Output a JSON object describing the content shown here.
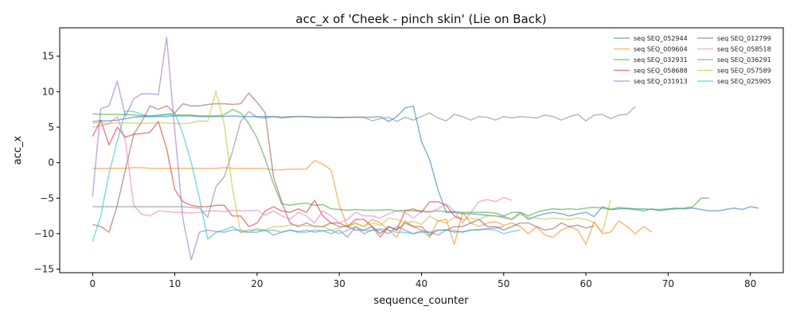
{
  "chart_data": {
    "type": "line",
    "title": "acc_x of 'Cheek - pinch skin' (Lie on Back)",
    "xlabel": "sequence_counter",
    "ylabel": "acc_x",
    "xlim": [
      -4,
      84
    ],
    "ylim": [
      -15.5,
      19
    ],
    "xticks": [
      0,
      10,
      20,
      30,
      40,
      50,
      60,
      70,
      80
    ],
    "yticks": [
      -15,
      -10,
      -5,
      0,
      5,
      10,
      15
    ],
    "grid": false,
    "legend": "top-right",
    "series": [
      {
        "name": "seq SEQ_052944",
        "color": "#1f77b4",
        "x0": 0,
        "values": [
          5.8,
          5.9,
          5.9,
          6.0,
          6.2,
          6.4,
          6.5,
          6.5,
          6.5,
          6.5,
          6.6,
          6.6,
          6.6,
          6.5,
          6.5,
          6.5,
          6.5,
          6.6,
          6.5,
          6.5,
          6.5,
          6.5,
          6.5,
          6.4,
          6.5,
          6.5,
          6.5,
          6.4,
          6.4,
          6.4,
          6.4,
          6.4,
          6.4,
          6.4,
          6.4,
          6.5,
          5.8,
          6.5,
          7.7,
          8.0,
          3.0,
          0.4,
          -3.8,
          -7.0,
          -7.0,
          -7.2,
          -7.2,
          -7.3,
          -7.4,
          -7.5,
          -7.6,
          -8.0,
          -7.0,
          -8.0,
          -7.5,
          -7.2,
          -7.0,
          -7.2,
          -7.5,
          -7.2,
          -7.0,
          -7.6,
          -6.2,
          -6.6,
          -6.5,
          -6.4,
          -6.5,
          -6.5,
          -6.6,
          -6.6,
          -6.5,
          -6.4,
          -6.5,
          -6.4,
          -6.6,
          -6.8,
          -6.8,
          -6.6,
          -6.4,
          -6.6,
          -6.2,
          -6.4
        ]
      },
      {
        "name": "seq SEQ_009604",
        "color": "#ff7f0e",
        "x0": 0,
        "values": [
          -0.8,
          -0.8,
          -0.8,
          -0.8,
          -0.8,
          -0.7,
          -0.7,
          -0.8,
          -0.8,
          -0.8,
          -0.8,
          -0.8,
          -0.8,
          -0.8,
          -0.8,
          -0.8,
          -0.7,
          -0.8,
          -0.8,
          -0.8,
          -0.8,
          -0.8,
          -1.0,
          -1.0,
          -0.9,
          -0.9,
          -0.9,
          0.3,
          -0.2,
          -1.0,
          -6.0,
          -9.0,
          -8.5,
          -9.0,
          -8.0,
          -8.5,
          -9.5,
          -10.5,
          -8.2,
          -9.0,
          -9.5,
          -10.5,
          -8.2,
          -8.0,
          -11.5,
          -7.0,
          -8.5,
          -9.0,
          -8.5,
          -8.3,
          -8.8,
          -8.5,
          -9.0,
          -10.0,
          -9.0,
          -10.2,
          -10.5,
          -9.5,
          -9.0,
          -9.5,
          -11.5,
          -8.3,
          -10.0,
          -9.8,
          -8.2,
          -9.0,
          -10.0,
          -9.0,
          -9.8
        ]
      },
      {
        "name": "seq SEQ_032931",
        "color": "#2ca02c",
        "x0": 0,
        "values": [
          6.9,
          6.8,
          6.8,
          6.8,
          6.8,
          6.7,
          6.6,
          6.6,
          6.7,
          6.8,
          6.7,
          6.7,
          6.7,
          6.6,
          6.6,
          6.6,
          6.7,
          7.5,
          7.0,
          5.5,
          3.5,
          0.5,
          -3.0,
          -5.8,
          -6.0,
          -5.8,
          -5.7,
          -6.0,
          -5.9,
          -6.5,
          -6.6,
          -6.7,
          -6.6,
          -6.7,
          -6.7,
          -6.7,
          -6.6,
          -6.8,
          -6.7,
          -6.8,
          -6.8,
          -6.9,
          -6.8,
          -6.9,
          -6.9,
          -7.0,
          -7.0,
          -7.0,
          -7.0,
          -7.1,
          -7.5,
          -7.0,
          -7.0,
          -7.5,
          -7.0,
          -6.7,
          -6.5,
          -6.6,
          -6.5,
          -6.6,
          -6.4,
          -6.3,
          -6.4,
          -6.6,
          -6.3,
          -6.5,
          -6.6,
          -6.8,
          -6.5,
          -6.8,
          -6.6,
          -6.5,
          -6.4,
          -6.2,
          -5.0,
          -5.0
        ]
      },
      {
        "name": "seq SEQ_058688",
        "color": "#d62728",
        "x0": 0,
        "values": [
          3.7,
          6.0,
          2.5,
          5.0,
          3.6,
          4.0,
          4.1,
          4.3,
          5.8,
          2.0,
          -3.8,
          -5.5,
          -6.0,
          -6.2,
          -6.2,
          -6.0,
          -6.0,
          -7.5,
          -7.5,
          -9.0,
          -8.5,
          -6.8,
          -6.2,
          -6.8,
          -7.0,
          -6.5,
          -7.0,
          -5.3,
          -7.5,
          -8.5,
          -8.5,
          -9.0,
          -8.0,
          -8.0,
          -9.0,
          -10.0,
          -9.0,
          -9.5,
          -6.8,
          -6.5,
          -7.0,
          -5.5,
          -5.5,
          -6.0,
          -7.5,
          -8.0
        ]
      },
      {
        "name": "seq SEQ_031913",
        "color": "#9467bd",
        "x0": 0,
        "values": [
          -4.8,
          7.6,
          8.0,
          11.5,
          6.5,
          9.0,
          9.7,
          9.7,
          9.6,
          17.7,
          4.5,
          -8.0,
          -13.7,
          -9.8,
          -9.5,
          -9.7,
          -9.8,
          -9.5,
          -9.5,
          -9.8,
          -9.8,
          -9.5,
          -10.2,
          -9.8,
          -9.5,
          -9.7,
          -9.5,
          -9.8,
          -9.6,
          -10.0,
          -9.5,
          -10.5,
          -9.0,
          -10.0,
          -9.5,
          -9.5,
          -10.0,
          -9.0,
          -9.5,
          -10.0,
          -9.6,
          -9.8,
          -10.2,
          -9.5,
          -9.6,
          -9.8,
          -9.5,
          -9.5,
          -9.3,
          -9.2,
          -9.0
        ]
      },
      {
        "name": "seq SEQ_012799",
        "color": "#8c564b",
        "x0": 0,
        "values": [
          -8.7,
          -9.0,
          -9.8,
          -6.0,
          -1.0,
          4.0,
          5.8,
          8.0,
          7.5,
          8.0,
          7.0,
          8.3,
          8.0,
          8.0,
          8.2,
          8.3,
          8.3,
          8.2,
          8.3,
          9.8,
          8.5,
          7.0,
          -2.0,
          -5.5,
          -8.5,
          -9.0,
          -8.5,
          -9.0,
          -9.0,
          -8.5,
          -9.0,
          -9.0,
          -9.5,
          -9.5,
          -9.0,
          -10.5,
          -9.0,
          -9.5,
          -8.5,
          -9.0,
          -9.0,
          -10.2,
          -9.5,
          -9.5,
          -9.0,
          -9.0,
          -8.5,
          -8.0,
          -9.0,
          -9.0,
          -9.5,
          -9.0,
          -8.5,
          -8.5,
          -9.0,
          -9.5,
          -9.3,
          -8.5,
          -9.0,
          -8.8,
          -9.2,
          -8.9
        ]
      },
      {
        "name": "seq SEQ_058518",
        "color": "#e377c2",
        "x0": 0,
        "values": [
          5.0,
          5.2,
          5.5,
          6.5,
          3.0,
          -6.0,
          -7.3,
          -7.5,
          -6.8,
          -6.9,
          -7.0,
          -7.0,
          -7.1,
          -7.0,
          -6.8,
          -6.8,
          -6.9,
          -6.7,
          -6.8,
          -6.8,
          -6.7,
          -7.4,
          -6.8,
          -7.5,
          -8.0,
          -7.0,
          -7.5,
          -8.5,
          -6.8,
          -7.5,
          -8.5,
          -8.0,
          -7.0,
          -7.5,
          -7.5,
          -7.8,
          -7.2,
          -6.8,
          -7.0,
          -7.8,
          -6.9,
          -7.0,
          -6.5,
          -5.8,
          -6.8,
          -8.5,
          -7.0,
          -5.5,
          -5.2,
          -5.5,
          -4.9,
          -5.3
        ]
      },
      {
        "name": "seq SEQ_036291",
        "color": "#7f7f7f",
        "x0": 0,
        "values": [
          -6.2,
          -6.2,
          -6.2,
          -6.2,
          -6.2,
          -6.2,
          -6.2,
          -6.2,
          -6.2,
          -6.2,
          -6.2,
          -6.2,
          -6.3,
          -6.4,
          -7.7,
          -3.4,
          -2.0,
          1.5,
          5.8,
          7.2,
          6.4,
          6.3,
          6.5,
          6.3,
          6.4,
          6.5,
          6.5,
          6.4,
          6.4,
          6.4,
          6.3,
          6.4,
          6.4,
          6.4,
          5.9,
          6.2,
          6.4,
          5.8,
          6.4,
          6.0,
          6.5,
          7.0,
          6.3,
          5.9,
          6.8,
          6.5,
          6.0,
          6.5,
          6.4,
          6.0,
          6.5,
          6.3,
          6.5,
          6.4,
          6.3,
          6.7,
          6.5,
          6.0,
          6.5,
          6.8,
          5.9,
          6.7,
          6.8,
          6.2,
          6.7,
          6.8,
          7.9
        ]
      },
      {
        "name": "seq SEQ_057589",
        "color": "#bcbd22",
        "x0": 0,
        "values": [
          5.6,
          5.6,
          5.5,
          5.6,
          5.6,
          5.6,
          5.5,
          5.6,
          5.6,
          5.6,
          5.5,
          5.5,
          5.6,
          5.9,
          5.8,
          10.1,
          5.5,
          -3.5,
          -9.8,
          -9.8,
          -9.3,
          -9.5,
          -9.0,
          -9.0,
          -8.8,
          -8.8,
          -8.9,
          -8.9,
          -9.0,
          -9.5,
          -9.2,
          -8.8,
          -8.6,
          -9.0,
          -8.5,
          -8.8,
          -7.8,
          -8.0,
          -8.5,
          -8.3,
          -8.7,
          -7.5,
          -8.2,
          -8.5,
          -7.7,
          -8.0,
          -7.8,
          -8.0,
          -7.5,
          -7.5,
          -7.8,
          -8.0,
          -7.3,
          -7.7,
          -7.8,
          -8.0,
          -7.8,
          -7.9,
          -8.0,
          -7.8,
          -8.0,
          -8.5,
          -9.8,
          -5.3
        ]
      },
      {
        "name": "seq SEQ_025905",
        "color": "#17becf",
        "x0": 0,
        "values": [
          -11.1,
          -7.5,
          -1.5,
          3.0,
          7.3,
          7.2,
          6.8,
          6.5,
          6.6,
          6.8,
          7.0,
          4.0,
          0.0,
          -5.0,
          -10.8,
          -9.8,
          -9.5,
          -9.0,
          -9.8,
          -9.5,
          -9.5,
          -9.6,
          -9.5,
          -9.8,
          -9.5,
          -9.8,
          -9.8,
          -9.5,
          -9.6,
          -9.5,
          -10.0,
          -9.5,
          -9.0,
          -9.6,
          -9.5,
          -9.3,
          -9.5,
          -9.8,
          -9.8,
          -10.0,
          -9.8,
          -9.8,
          -9.5,
          -9.5,
          -9.8,
          -9.7,
          -9.5,
          -9.4,
          -9.4,
          -9.5,
          -10.0,
          -9.7,
          -9.5
        ]
      }
    ]
  }
}
